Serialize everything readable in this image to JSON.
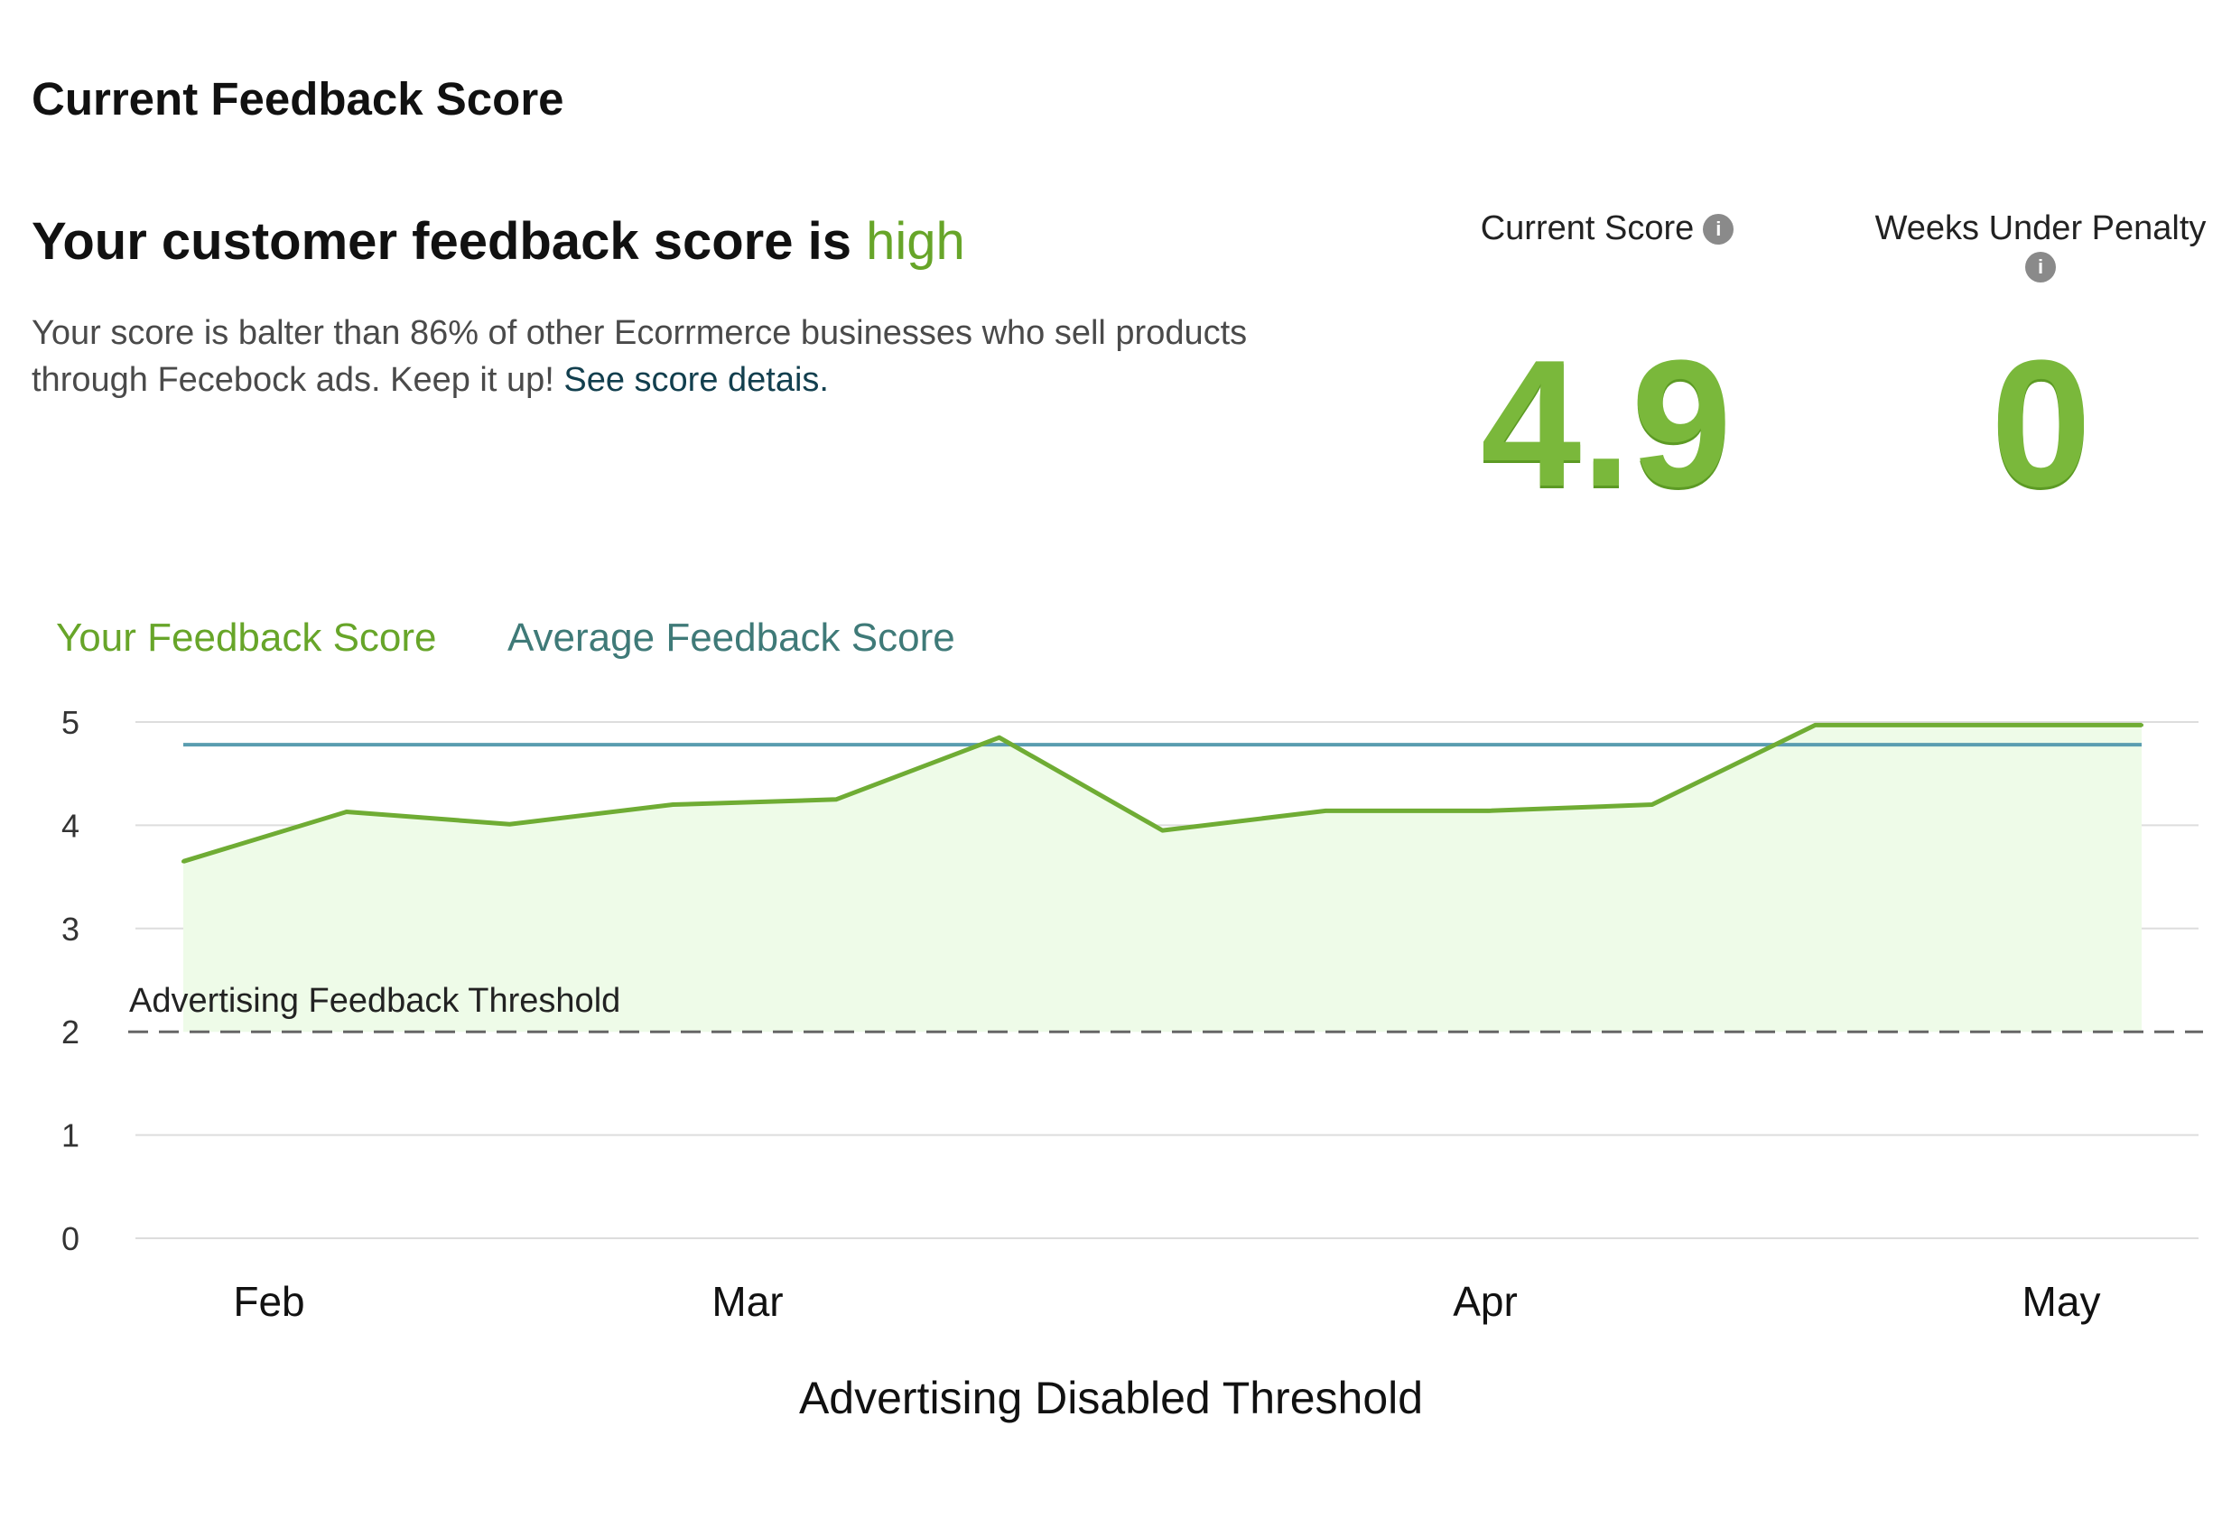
{
  "header": {
    "title": "Current Feedback Score"
  },
  "summary": {
    "headline_prefix": "Your customer feedback score is ",
    "headline_accent": "high",
    "description": "Your score is balter than 86% of other Ecorrmerce businesses who sell products through Fecebock ads. Keep it up! ",
    "details_link": "See score detais."
  },
  "metrics": {
    "current_score_label": "Current Score",
    "current_score_value": "4.9",
    "weeks_penalty_label": "Weeks Under Penalty",
    "weeks_penalty_value": "0"
  },
  "colors": {
    "your_score": "#6fac34",
    "average_score": "#5a9db0",
    "accent": "#67a529",
    "fill": "#eefbe8",
    "threshold": "#666666"
  },
  "chart_data": {
    "type": "line",
    "ylim": [
      0,
      5
    ],
    "yticks": [
      0,
      1,
      2,
      3,
      4,
      5
    ],
    "month_labels": [
      "Feb",
      "Mar",
      "Apr",
      "May"
    ],
    "xlabel": "Advertising Disabled Threshold",
    "threshold": {
      "label": "Advertising Feedback Threshold",
      "value": 2
    },
    "series": [
      {
        "name": "Your Feedback Score",
        "values": [
          3.65,
          4.13,
          4.01,
          4.2,
          4.25,
          4.85,
          3.95,
          4.14,
          4.14,
          4.2,
          4.97,
          4.97,
          4.97
        ]
      },
      {
        "name": "Average Feedback Score",
        "values": [
          4.78,
          4.78,
          4.78,
          4.78,
          4.78,
          4.78,
          4.78,
          4.78,
          4.78,
          4.78,
          4.78,
          4.78,
          4.78
        ]
      }
    ]
  }
}
